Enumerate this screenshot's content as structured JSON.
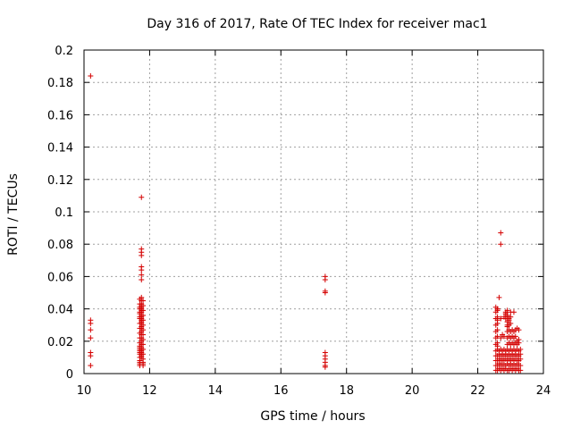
{
  "chart_data": {
    "type": "scatter",
    "title": "Day 316 of 2017, Rate Of TEC Index for receiver mac1",
    "xlabel": "GPS time / hours",
    "ylabel": "ROTI / TECUs",
    "xlim": [
      10,
      24
    ],
    "ylim": [
      0,
      0.2
    ],
    "xticks": [
      "10",
      "12",
      "14",
      "16",
      "18",
      "20",
      "22",
      "24"
    ],
    "yticks": [
      "0",
      "0.02",
      "0.04",
      "0.06",
      "0.08",
      "0.1",
      "0.12",
      "0.14",
      "0.16",
      "0.18",
      "0.2"
    ],
    "grid": true,
    "marker": "+",
    "color": "#d40000",
    "series": [
      {
        "x": [
          10.2,
          10.2,
          10.2,
          10.2,
          10.2,
          10.2,
          10.2,
          10.2,
          11.75,
          11.75,
          11.75,
          11.75,
          11.75,
          11.75,
          11.75,
          11.75,
          11.75,
          11.75,
          11.75,
          11.75,
          11.75,
          11.75,
          11.75,
          11.75,
          11.75,
          11.75,
          11.75,
          11.75,
          11.75,
          11.75,
          11.75,
          11.75,
          11.75,
          11.75,
          11.75,
          11.75,
          11.75,
          11.75,
          11.75,
          11.75,
          11.75,
          11.75,
          11.75,
          11.75,
          11.7,
          11.7,
          11.7,
          11.7,
          11.7,
          11.7,
          11.7,
          11.7,
          11.7,
          11.7,
          11.7,
          11.7,
          11.7,
          11.7,
          11.7,
          11.7,
          11.7,
          11.7,
          11.7,
          11.7,
          11.7,
          11.7,
          11.7,
          11.7,
          11.8,
          11.8,
          11.8,
          11.8,
          11.8,
          11.8,
          11.8,
          11.8,
          11.8,
          11.8,
          11.8,
          11.8,
          11.8,
          11.8,
          11.8,
          11.8,
          17.35,
          17.35,
          17.35,
          17.35,
          17.35,
          17.35,
          17.35,
          17.35,
          17.35,
          17.35,
          22.7,
          22.7,
          22.65,
          22.55,
          22.6,
          22.65,
          22.7,
          22.75,
          22.8,
          22.85,
          22.9,
          22.95,
          23.0,
          23.05,
          23.1,
          23.15,
          23.2,
          23.25,
          23.3,
          22.55,
          22.6,
          22.65,
          22.7,
          22.75,
          22.8,
          22.85,
          22.9,
          22.95,
          23.0,
          23.05,
          23.1,
          23.15,
          23.2,
          23.25,
          23.3,
          22.55,
          22.6,
          22.65,
          22.7,
          22.75,
          22.8,
          22.85,
          22.9,
          22.95,
          23.0,
          23.05,
          23.1,
          23.15,
          23.2,
          23.25,
          23.3,
          22.55,
          22.6,
          22.65,
          22.7,
          22.75,
          22.8,
          22.85,
          22.9,
          22.95,
          23.0,
          23.05,
          23.1,
          23.15,
          23.2,
          23.25,
          23.3,
          22.55,
          22.6,
          22.65,
          22.7,
          22.75,
          22.8,
          22.85,
          22.9,
          22.95,
          23.0,
          23.05,
          23.1,
          23.15,
          23.2,
          23.25,
          23.3,
          22.55,
          22.6,
          22.9,
          22.95,
          23.0,
          23.05,
          23.1,
          23.15,
          23.2,
          23.25,
          22.55,
          22.6,
          22.7,
          22.8,
          22.9,
          22.95,
          23.0,
          23.05,
          23.1,
          23.15,
          22.55,
          22.6,
          22.9,
          22.95,
          23.0,
          23.05,
          23.1,
          23.15,
          22.55,
          22.6,
          22.9,
          23.0,
          22.55,
          22.6,
          22.7,
          22.8,
          22.85,
          22.9,
          22.95,
          23.0,
          23.2,
          23.25,
          22.55,
          22.6,
          22.85,
          22.9,
          23.0,
          23.1,
          23.2,
          23.25,
          22.55,
          22.6,
          22.9,
          22.95,
          22.6,
          22.85,
          22.9,
          22.95,
          22.6,
          22.9,
          22.6,
          22.75
        ],
        "y": [
          0.033,
          0.031,
          0.027,
          0.022,
          0.013,
          0.011,
          0.005,
          0.184,
          0.109,
          0.077,
          0.075,
          0.073,
          0.066,
          0.064,
          0.061,
          0.058,
          0.047,
          0.045,
          0.043,
          0.042,
          0.041,
          0.04,
          0.039,
          0.038,
          0.036,
          0.035,
          0.034,
          0.033,
          0.032,
          0.031,
          0.029,
          0.028,
          0.026,
          0.024,
          0.022,
          0.02,
          0.018,
          0.016,
          0.015,
          0.014,
          0.013,
          0.012,
          0.011,
          0.01,
          0.046,
          0.043,
          0.04,
          0.037,
          0.034,
          0.031,
          0.028,
          0.025,
          0.022,
          0.019,
          0.016,
          0.014,
          0.012,
          0.01,
          0.008,
          0.007,
          0.006,
          0.005,
          0.013,
          0.015,
          0.017,
          0.035,
          0.038,
          0.041,
          0.045,
          0.042,
          0.039,
          0.036,
          0.033,
          0.03,
          0.027,
          0.024,
          0.021,
          0.018,
          0.015,
          0.012,
          0.009,
          0.007,
          0.006,
          0.005,
          0.06,
          0.058,
          0.051,
          0.05,
          0.013,
          0.011,
          0.009,
          0.007,
          0.005,
          0.004,
          0.087,
          0.08,
          0.047,
          0.002,
          0.002,
          0.003,
          0.002,
          0.003,
          0.002,
          0.003,
          0.002,
          0.002,
          0.003,
          0.002,
          0.003,
          0.002,
          0.003,
          0.002,
          0.002,
          0.005,
          0.005,
          0.006,
          0.005,
          0.006,
          0.005,
          0.005,
          0.006,
          0.005,
          0.006,
          0.005,
          0.006,
          0.005,
          0.006,
          0.005,
          0.005,
          0.008,
          0.008,
          0.009,
          0.008,
          0.009,
          0.008,
          0.009,
          0.008,
          0.009,
          0.008,
          0.009,
          0.008,
          0.009,
          0.008,
          0.008,
          0.009,
          0.011,
          0.011,
          0.012,
          0.011,
          0.012,
          0.011,
          0.012,
          0.011,
          0.012,
          0.011,
          0.012,
          0.011,
          0.012,
          0.011,
          0.011,
          0.012,
          0.014,
          0.015,
          0.014,
          0.015,
          0.014,
          0.015,
          0.014,
          0.015,
          0.014,
          0.015,
          0.014,
          0.015,
          0.014,
          0.015,
          0.014,
          0.015,
          0.018,
          0.019,
          0.018,
          0.019,
          0.018,
          0.019,
          0.018,
          0.019,
          0.018,
          0.019,
          0.022,
          0.023,
          0.022,
          0.023,
          0.022,
          0.023,
          0.022,
          0.023,
          0.022,
          0.023,
          0.026,
          0.027,
          0.026,
          0.027,
          0.026,
          0.027,
          0.026,
          0.027,
          0.03,
          0.031,
          0.03,
          0.031,
          0.034,
          0.035,
          0.034,
          0.035,
          0.034,
          0.035,
          0.034,
          0.035,
          0.028,
          0.027,
          0.038,
          0.039,
          0.038,
          0.039,
          0.038,
          0.038,
          0.02,
          0.021,
          0.041,
          0.04,
          0.036,
          0.033,
          0.04,
          0.037,
          0.032,
          0.03,
          0.033,
          0.029,
          0.017,
          0.024
        ]
      }
    ]
  }
}
